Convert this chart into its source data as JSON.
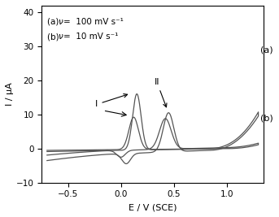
{
  "xlim": [
    -0.75,
    1.35
  ],
  "ylim": [
    -10,
    42
  ],
  "xlabel": "E / V (SCE)",
  "ylabel": "I / μA",
  "xticks": [
    -0.5,
    0.0,
    0.5,
    1.0
  ],
  "yticks": [
    -10,
    0,
    10,
    20,
    30,
    40
  ],
  "label_a": "(a)",
  "label_b": "(b)",
  "annotation_I": "I",
  "annotation_II": "II",
  "curve_color": "#555555",
  "background_color": "#ffffff",
  "figsize": [
    3.43,
    2.67
  ],
  "dpi": 100
}
